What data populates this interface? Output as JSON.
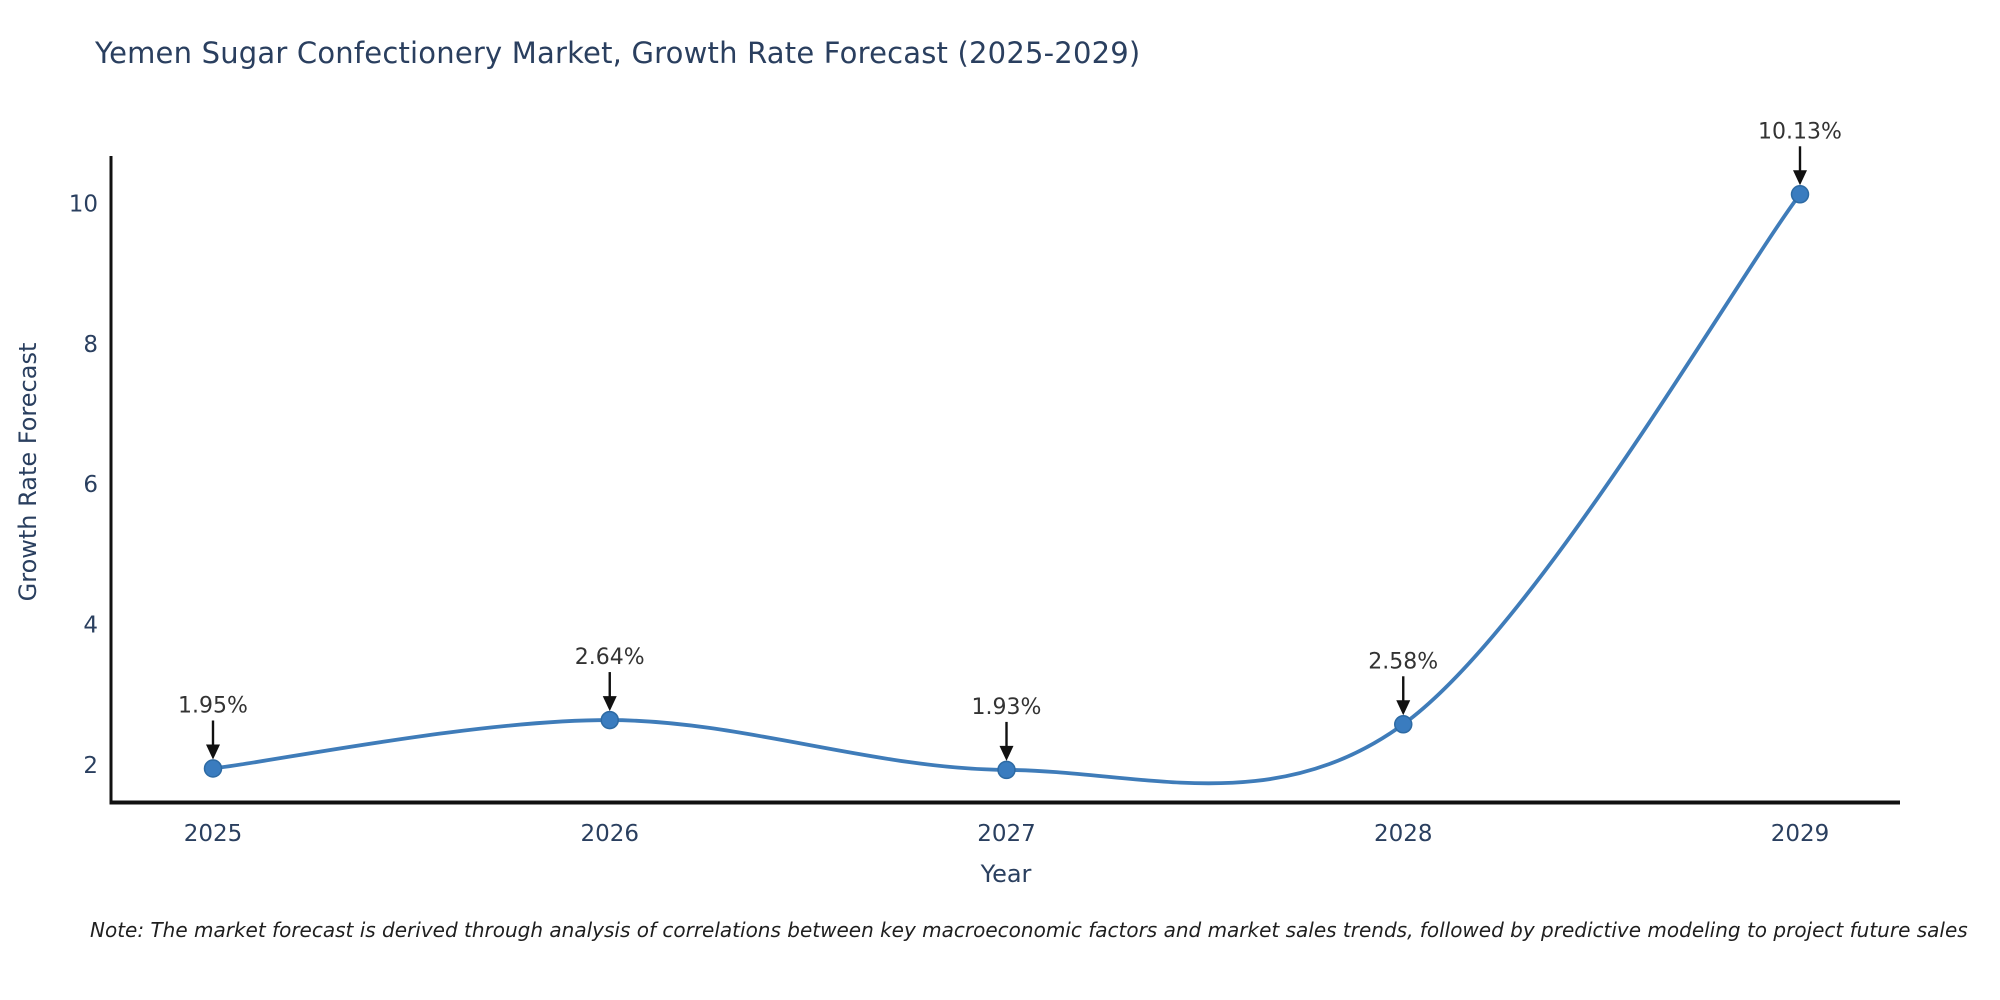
{
  "title": "Yemen Sugar Confectionery Market, Growth Rate Forecast (2025-2029)",
  "note": "Note: The market forecast is derived through analysis of correlations between key macroeconomic factors and market sales trends, followed by predictive modeling to project future sales",
  "chart_data": {
    "type": "line",
    "title": "Yemen Sugar Confectionery Market, Growth Rate Forecast (2025-2029)",
    "xlabel": "Year",
    "ylabel": "Growth Rate Forecast",
    "x": [
      2025,
      2026,
      2027,
      2028,
      2029
    ],
    "series": [
      {
        "name": "Growth Rate Forecast",
        "values": [
          1.95,
          2.64,
          1.93,
          2.58,
          10.13
        ]
      }
    ],
    "annotations": [
      "1.95%",
      "2.64%",
      "1.93%",
      "2.58%",
      "10.13%"
    ],
    "xticks": [
      "2025",
      "2026",
      "2027",
      "2028",
      "2029"
    ],
    "yticks": [
      2,
      4,
      6,
      8,
      10
    ],
    "ylim": [
      1.5,
      10.66
    ],
    "grid": false,
    "legend": "none",
    "line_style": "spline",
    "colors": {
      "line": "#3f7cb9",
      "marker_fill": "#3a7cbf",
      "marker_edge": "#2d6aa3",
      "axis_line": "#111111",
      "tick_label": "#2a3f5f",
      "annotation_text": "#333333",
      "arrow": "#111111",
      "title_text": "#2a3f5f",
      "background": "#ffffff"
    }
  }
}
